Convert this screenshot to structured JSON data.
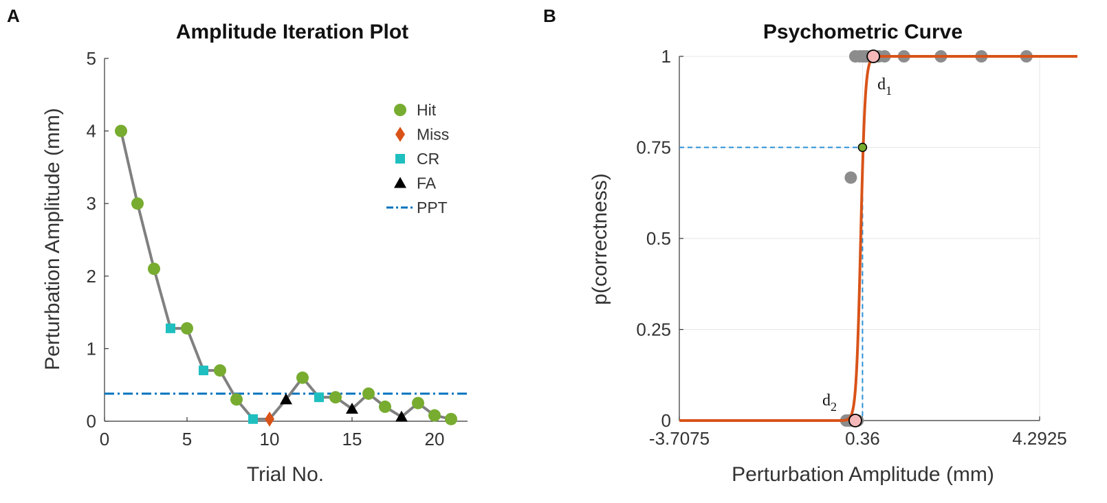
{
  "colors": {
    "hit": "#77ac30",
    "miss": "#d95319",
    "cr": "#1fbfbf",
    "fa": "#000000",
    "ppt": "#0072bd",
    "path": "#808080",
    "fit": "#d95319",
    "threshold": "#2a8fd6",
    "data_points": "#8c8c8c",
    "highlight": "#f4b8b8"
  },
  "chart_data": [
    {
      "type": "line",
      "panel_letter": "A",
      "title": "Amplitude Iteration Plot",
      "xlabel": "Trial No.",
      "ylabel": "Perturbation Amplitude (mm)",
      "xlim": [
        0,
        22
      ],
      "ylim": [
        0,
        5
      ],
      "xticks": [
        0,
        5,
        10,
        15,
        20
      ],
      "xtick_labels": [
        "0",
        "5",
        "10",
        "15",
        "20"
      ],
      "yticks": [
        0,
        1,
        2,
        3,
        4,
        5
      ],
      "ytick_labels": [
        "0",
        "1",
        "2",
        "3",
        "4",
        "5"
      ],
      "trials": [
        {
          "x": 1,
          "y": 4.0,
          "type": "Hit"
        },
        {
          "x": 2,
          "y": 3.0,
          "type": "Hit"
        },
        {
          "x": 3,
          "y": 2.1,
          "type": "Hit"
        },
        {
          "x": 4,
          "y": 1.28,
          "type": "CR"
        },
        {
          "x": 5,
          "y": 1.28,
          "type": "Hit"
        },
        {
          "x": 6,
          "y": 0.7,
          "type": "CR"
        },
        {
          "x": 7,
          "y": 0.7,
          "type": "Hit"
        },
        {
          "x": 8,
          "y": 0.3,
          "type": "Hit"
        },
        {
          "x": 9,
          "y": 0.03,
          "type": "CR"
        },
        {
          "x": 10,
          "y": 0.03,
          "type": "Miss"
        },
        {
          "x": 11,
          "y": 0.3,
          "type": "FA"
        },
        {
          "x": 12,
          "y": 0.6,
          "type": "Hit"
        },
        {
          "x": 13,
          "y": 0.33,
          "type": "CR"
        },
        {
          "x": 14,
          "y": 0.33,
          "type": "Hit"
        },
        {
          "x": 15,
          "y": 0.17,
          "type": "FA"
        },
        {
          "x": 16,
          "y": 0.38,
          "type": "Hit"
        },
        {
          "x": 17,
          "y": 0.2,
          "type": "Hit"
        },
        {
          "x": 18,
          "y": 0.06,
          "type": "FA"
        },
        {
          "x": 19,
          "y": 0.25,
          "type": "Hit"
        },
        {
          "x": 20,
          "y": 0.08,
          "type": "Hit"
        },
        {
          "x": 21,
          "y": 0.03,
          "type": "Hit"
        }
      ],
      "ppt": 0.38,
      "legend": {
        "position": "upper-right",
        "entries": [
          {
            "label": "Hit",
            "marker": "circle"
          },
          {
            "label": "Miss",
            "marker": "diamond"
          },
          {
            "label": "CR",
            "marker": "square"
          },
          {
            "label": "FA",
            "marker": "triangle"
          },
          {
            "label": "PPT",
            "marker": "dashdot-line"
          }
        ]
      }
    },
    {
      "type": "scatter",
      "panel_letter": "B",
      "title": "Psychometric Curve",
      "xlabel": "Perturbation Amplitude (mm)",
      "ylabel": "p(correctness)",
      "xlim": [
        -3.7075,
        4.2925
      ],
      "ylim": [
        0,
        1
      ],
      "xticks": [
        -3.7075,
        0.36,
        4.2925
      ],
      "xtick_labels": [
        "-3.7075",
        "0.36",
        "4.2925"
      ],
      "yticks": [
        0,
        0.25,
        0.5,
        0.75,
        1
      ],
      "ytick_labels": [
        "0",
        "0.25",
        "0.5",
        "0.75",
        "1"
      ],
      "grid": true,
      "data_points": [
        {
          "x": 0.0,
          "y": 0
        },
        {
          "x": 0.05,
          "y": 0
        },
        {
          "x": 0.1,
          "y": 0
        },
        {
          "x": 0.17,
          "y": 0
        },
        {
          "x": 0.25,
          "y": 0
        },
        {
          "x": 0.1,
          "y": 0.667
        },
        {
          "x": 0.2,
          "y": 1
        },
        {
          "x": 0.3,
          "y": 1
        },
        {
          "x": 0.38,
          "y": 1
        },
        {
          "x": 0.45,
          "y": 1
        },
        {
          "x": 0.55,
          "y": 1
        },
        {
          "x": 0.62,
          "y": 1
        },
        {
          "x": 0.72,
          "y": 1
        },
        {
          "x": 0.85,
          "y": 1
        },
        {
          "x": 1.28,
          "y": 1
        },
        {
          "x": 2.1,
          "y": 1
        },
        {
          "x": 3.0,
          "y": 1
        },
        {
          "x": 4.0,
          "y": 1
        }
      ],
      "fit": {
        "midpoint": 0.32,
        "slope": 20
      },
      "threshold": {
        "x": 0.36,
        "y": 0.75
      },
      "annotations": [
        {
          "base": "d",
          "sub": "1",
          "x": 1.1,
          "y": 1
        },
        {
          "base": "d",
          "sub": "2",
          "x": -0.1,
          "y": 0
        }
      ]
    }
  ]
}
